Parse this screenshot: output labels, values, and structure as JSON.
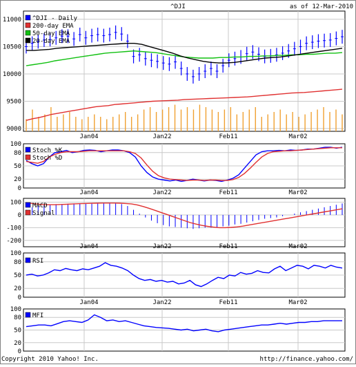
{
  "header": {
    "symbol": "^DJI",
    "as_of": "as of 12-Mar-2010"
  },
  "footer": {
    "copyright": "Copyright 2010 Yahoo! Inc.",
    "url": "http://finance.yahoo.com/"
  },
  "x_ticks": [
    "Jan04",
    "Jan22",
    "Feb11",
    "Mar02"
  ],
  "colors": {
    "price": "#0000ff",
    "ema200": "#e03030",
    "ema50": "#10c010",
    "ema20": "#000000",
    "volume": "#f0a030",
    "stoch_k": "#0000ff",
    "stoch_d": "#e03030",
    "macd": "#0000ff",
    "signal": "#e03030",
    "rsi": "#0000ff",
    "mfi": "#0000ff"
  },
  "chart_data": [
    {
      "type": "line",
      "panel": "price",
      "legend": [
        "^DJI - Daily",
        "200-day EMA",
        "50-day EMA",
        "20-day EMA"
      ],
      "y_ticks": [
        9000,
        9500,
        10000,
        10500,
        11000
      ],
      "ylim": [
        8950,
        11150
      ],
      "series": [
        {
          "name": "^DJI - Daily",
          "kind": "bars",
          "values": [
            10500,
            10560,
            10590,
            10620,
            10630,
            10660,
            10690,
            10690,
            10640,
            10720,
            10660,
            10700,
            10720,
            10700,
            10720,
            10760,
            10730,
            10600,
            10320,
            10350,
            10280,
            10250,
            10230,
            10200,
            10180,
            10220,
            10100,
            10000,
            9950,
            10000,
            10050,
            10100,
            10050,
            10150,
            10250,
            10280,
            10310,
            10370,
            10400,
            10360,
            10320,
            10330,
            10350,
            10380,
            10420,
            10460,
            10500,
            10560,
            10580,
            10600,
            10610,
            10620,
            10650,
            10680
          ]
        },
        {
          "name": "200-day EMA",
          "values": [
            9150,
            9180,
            9200,
            9230,
            9260,
            9280,
            9300,
            9320,
            9340,
            9360,
            9380,
            9400,
            9410,
            9420,
            9440,
            9450,
            9460,
            9470,
            9480,
            9490,
            9500,
            9505,
            9510,
            9515,
            9520,
            9530,
            9535,
            9540,
            9545,
            9550,
            9555,
            9560,
            9565,
            9570,
            9575,
            9580,
            9590,
            9600,
            9610,
            9620,
            9630,
            9640,
            9650,
            9655,
            9660,
            9670,
            9680,
            9690,
            9700,
            9710,
            9720
          ]
        },
        {
          "name": "50-day EMA",
          "values": [
            10150,
            10170,
            10190,
            10210,
            10240,
            10260,
            10280,
            10300,
            10320,
            10340,
            10360,
            10380,
            10390,
            10400,
            10410,
            10420,
            10410,
            10400,
            10390,
            10370,
            10350,
            10330,
            10310,
            10300,
            10290,
            10290,
            10290,
            10300,
            10300,
            10310,
            10310,
            10320,
            10320,
            10330,
            10330,
            10340,
            10340,
            10350,
            10350,
            10360,
            10360,
            10370,
            10380,
            10380,
            10390
          ]
        },
        {
          "name": "20-day EMA",
          "values": [
            10430,
            10430,
            10440,
            10450,
            10470,
            10480,
            10490,
            10500,
            10510,
            10520,
            10530,
            10540,
            10550,
            10560,
            10560,
            10540,
            10500,
            10460,
            10420,
            10380,
            10330,
            10290,
            10260,
            10230,
            10210,
            10200,
            10200,
            10210,
            10230,
            10250,
            10270,
            10290,
            10300,
            10310,
            10330,
            10350,
            10370,
            10390,
            10410,
            10430,
            10450,
            10470
          ]
        }
      ],
      "volume_values": [
        0.25,
        0.45,
        0.3,
        0.35,
        0.5,
        0.3,
        0.35,
        0.4,
        0.3,
        0.25,
        0.3,
        0.35,
        0.3,
        0.25,
        0.3,
        0.35,
        0.4,
        0.3,
        0.35,
        0.45,
        0.5,
        0.4,
        0.45,
        0.5,
        0.55,
        0.45,
        0.5,
        0.45,
        0.55,
        0.5,
        0.45,
        0.4,
        0.45,
        0.5,
        0.35,
        0.4,
        0.45,
        0.5,
        0.3,
        0.35,
        0.4,
        0.45,
        0.35,
        0.4,
        0.3,
        0.35,
        0.4,
        0.45,
        0.5,
        0.4,
        0.45,
        0.35
      ]
    },
    {
      "type": "line",
      "panel": "stoch",
      "legend": [
        "Stoch %K",
        "Stoch %D"
      ],
      "y_ticks": [
        0,
        20,
        50,
        80,
        100
      ],
      "ylim": [
        0,
        100
      ],
      "series": [
        {
          "name": "Stoch %K",
          "values": [
            62,
            55,
            50,
            55,
            70,
            80,
            82,
            85,
            80,
            82,
            85,
            86,
            85,
            82,
            84,
            86,
            86,
            84,
            80,
            70,
            50,
            35,
            25,
            20,
            18,
            16,
            18,
            15,
            17,
            20,
            18,
            16,
            18,
            17,
            15,
            18,
            22,
            30,
            45,
            60,
            75,
            82,
            84,
            84,
            85,
            84,
            86,
            85,
            86,
            88,
            88,
            90,
            92,
            92,
            90,
            92
          ]
        },
        {
          "name": "Stoch %D",
          "values": [
            60,
            58,
            56,
            60,
            70,
            76,
            80,
            82,
            82,
            82,
            83,
            84,
            84,
            84,
            84,
            84,
            84,
            84,
            82,
            78,
            68,
            52,
            38,
            28,
            23,
            20,
            19,
            18,
            17,
            18,
            18,
            17,
            18,
            18,
            17,
            17,
            19,
            24,
            33,
            45,
            58,
            70,
            78,
            82,
            83,
            84,
            84,
            85,
            86,
            87,
            88,
            89,
            90,
            91,
            91,
            91
          ]
        }
      ]
    },
    {
      "type": "bar",
      "panel": "macd",
      "legend": [
        "MACD",
        "Signal"
      ],
      "y_ticks": [
        -200,
        -100,
        0,
        100
      ],
      "ylim": [
        -250,
        130
      ],
      "series": [
        {
          "name": "MACD",
          "kind": "bars",
          "values": [
            40,
            60,
            70,
            75,
            80,
            85,
            85,
            88,
            90,
            92,
            92,
            95,
            95,
            95,
            92,
            90,
            85,
            70,
            40,
            10,
            -20,
            -45,
            -65,
            -80,
            -90,
            -95,
            -100,
            -105,
            -110,
            -105,
            -100,
            -100,
            -95,
            -90,
            -85,
            -75,
            -70,
            -60,
            -50,
            -40,
            -30,
            -25,
            -20,
            -10,
            0,
            10,
            20,
            30,
            40,
            50,
            60,
            70,
            80,
            90
          ]
        },
        {
          "name": "Signal",
          "values": [
            95,
            90,
            85,
            80,
            80,
            80,
            82,
            84,
            86,
            88,
            90,
            91,
            92,
            93,
            93,
            93,
            92,
            90,
            86,
            78,
            66,
            52,
            36,
            20,
            4,
            -12,
            -28,
            -44,
            -60,
            -72,
            -82,
            -90,
            -96,
            -100,
            -100,
            -98,
            -94,
            -88,
            -80,
            -72,
            -64,
            -56,
            -48,
            -40,
            -32,
            -24,
            -16,
            -8,
            0,
            8,
            16,
            24,
            32,
            40,
            48
          ]
        }
      ]
    },
    {
      "type": "line",
      "panel": "rsi",
      "legend": [
        "RSI"
      ],
      "y_ticks": [
        0,
        20,
        50,
        80,
        100
      ],
      "ylim": [
        0,
        100
      ],
      "series": [
        {
          "name": "RSI",
          "values": [
            50,
            52,
            48,
            50,
            55,
            62,
            60,
            65,
            62,
            60,
            64,
            62,
            66,
            70,
            78,
            72,
            70,
            66,
            60,
            50,
            42,
            38,
            40,
            36,
            38,
            34,
            36,
            30,
            32,
            38,
            28,
            24,
            30,
            38,
            45,
            42,
            50,
            48,
            56,
            52,
            54,
            60,
            56,
            55,
            64,
            70,
            60,
            66,
            72,
            70,
            64,
            72,
            70,
            66,
            72,
            68,
            66
          ]
        }
      ]
    },
    {
      "type": "line",
      "panel": "mfi",
      "legend": [
        "MFI"
      ],
      "y_ticks": [
        0,
        20,
        50,
        80,
        100
      ],
      "ylim": [
        0,
        100
      ],
      "series": [
        {
          "name": "MFI",
          "values": [
            58,
            60,
            62,
            62,
            60,
            65,
            70,
            72,
            70,
            68,
            74,
            86,
            80,
            72,
            74,
            70,
            72,
            68,
            64,
            60,
            58,
            56,
            55,
            54,
            52,
            50,
            52,
            48,
            50,
            52,
            48,
            46,
            50,
            52,
            54,
            56,
            58,
            60,
            62,
            62,
            64,
            66,
            64,
            66,
            68,
            68,
            70,
            70,
            72,
            72,
            72,
            72
          ]
        }
      ]
    }
  ]
}
